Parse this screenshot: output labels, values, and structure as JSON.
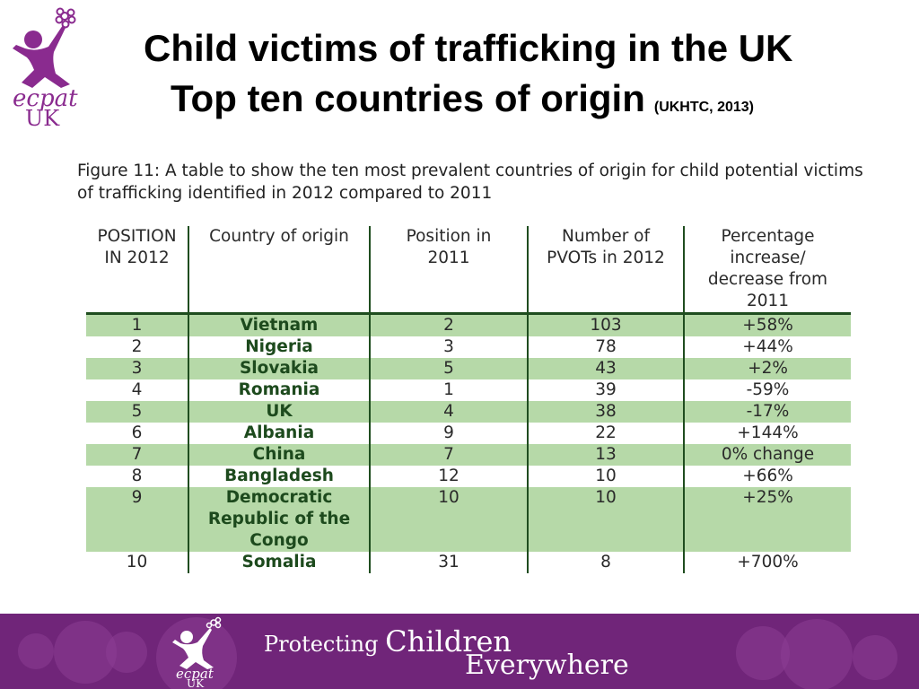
{
  "header": {
    "logo_text_line1": "ecpat",
    "logo_text_line2": "UK",
    "title_line1": "Child victims of trafficking in the UK",
    "title_line2": "Top ten countries of origin",
    "source": "(UKHTC, 2013)"
  },
  "caption": "Figure 11: A table to show the ten most prevalent countries of origin for child potential victims of trafficking identified in 2012 compared to 2011",
  "table": {
    "headers": {
      "position_2012_line1": "POSITION",
      "position_2012_line2": "IN 2012",
      "country": "Country of origin",
      "position_2011_line1": "Position in",
      "position_2011_line2": "2011",
      "pvots_line1": "Number of",
      "pvots_line2": "PVOTs in 2012",
      "pct_line1": "Percentage",
      "pct_line2": "increase/",
      "pct_line3": "decrease from",
      "pct_line4": "2011"
    },
    "rows": [
      {
        "pos": "1",
        "country": "Vietnam",
        "pos2011": "2",
        "pvots": "103",
        "change": "+58%"
      },
      {
        "pos": "2",
        "country": "Nigeria",
        "pos2011": "3",
        "pvots": "78",
        "change": "+44%"
      },
      {
        "pos": "3",
        "country": "Slovakia",
        "pos2011": "5",
        "pvots": "43",
        "change": "+2%"
      },
      {
        "pos": "4",
        "country": "Romania",
        "pos2011": "1",
        "pvots": "39",
        "change": "-59%"
      },
      {
        "pos": "5",
        "country": "UK",
        "pos2011": "4",
        "pvots": "38",
        "change": "-17%"
      },
      {
        "pos": "6",
        "country": "Albania",
        "pos2011": "9",
        "pvots": "22",
        "change": "+144%"
      },
      {
        "pos": "7",
        "country": "China",
        "pos2011": "7",
        "pvots": "13",
        "change": "0% change"
      },
      {
        "pos": "8",
        "country": "Bangladesh",
        "pos2011": "12",
        "pvots": "10",
        "change": "+66%"
      },
      {
        "pos": "9",
        "country_line1": "Democratic",
        "country_line2": "Republic of the",
        "country_line3": "Congo",
        "pos2011": "10",
        "pvots": "10",
        "change": "+25%"
      },
      {
        "pos": "10",
        "country": "Somalia",
        "pos2011": "31",
        "pvots": "8",
        "change": "+700%"
      }
    ]
  },
  "footer": {
    "logo_text_line1": "ecpat",
    "logo_text_line2": "UK",
    "tagline_small": "Protecting",
    "tagline_big": "Children",
    "tagline_line2": "Everywhere"
  },
  "colors": {
    "brand_purple": "#702579",
    "logo_purple": "#8a2b8f",
    "row_band_green": "#b6d9a8",
    "rule_dark_green": "#1f4d1f"
  }
}
